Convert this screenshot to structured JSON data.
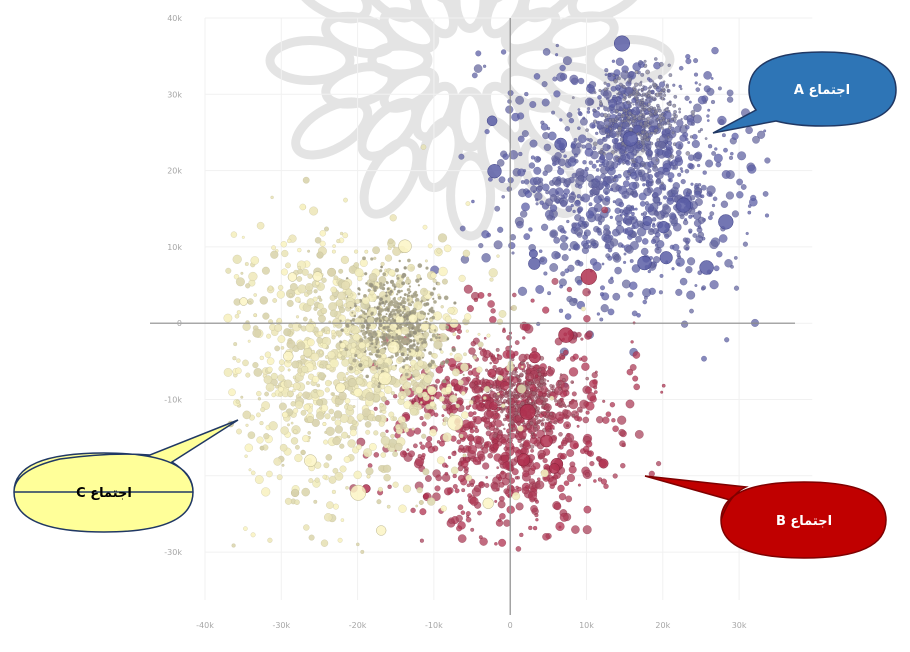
{
  "chart_data": {
    "type": "scatter",
    "title": "",
    "xlabel": "",
    "ylabel": "",
    "xlim": [
      -40000,
      35000
    ],
    "ylim": [
      -33000,
      40000
    ],
    "grid": true,
    "x_ticks": [
      -40000,
      -30000,
      -20000,
      -10000,
      0,
      10000,
      20000,
      30000
    ],
    "y_ticks": [
      -30000,
      -20000,
      -10000,
      0,
      10000,
      20000,
      30000,
      40000
    ],
    "x_tick_labels": [
      "-40k",
      "-30k",
      "-20k",
      "-10k",
      "0",
      "10k",
      "20k",
      "30k"
    ],
    "y_tick_labels": [
      "-30k",
      "-20k",
      "-10k",
      "0",
      "10k",
      "20k",
      "30k",
      "40k"
    ],
    "series": [
      {
        "name": "اجتماع A",
        "color": "#5b5ea6",
        "core_color": "#8a8790",
        "center": [
          15000,
          19000
        ],
        "spread": [
          7500,
          8000
        ],
        "core": [
          17000,
          27000
        ],
        "points": 1500
      },
      {
        "name": "اجتماع B",
        "color": "#b0304f",
        "core_color": "#9d7079",
        "center": [
          -1000,
          -13000
        ],
        "spread": [
          7000,
          6500
        ],
        "core": [
          2000,
          -10000
        ],
        "points": 1300
      },
      {
        "name": "اجتماع C",
        "color": "#fbf5c4",
        "core_color": "#8e8a7a",
        "center": [
          -21000,
          -5000
        ],
        "spread": [
          8000,
          8500
        ],
        "core": [
          -15000,
          0
        ],
        "points": 1700
      }
    ]
  },
  "callouts": [
    {
      "label": "اجتماع A",
      "fill": "#2e75b6",
      "stroke": "#203864",
      "text_color": "#ffffff"
    },
    {
      "label": "اجتماع B",
      "fill": "#c00000",
      "stroke": "#7f0000",
      "text_color": "#ffffff"
    },
    {
      "label": "اجتماع C",
      "fill": "#ffff99",
      "stroke": "#203864",
      "text_color": "#000000"
    }
  ],
  "watermark": {
    "color": "#cfcfcf"
  }
}
